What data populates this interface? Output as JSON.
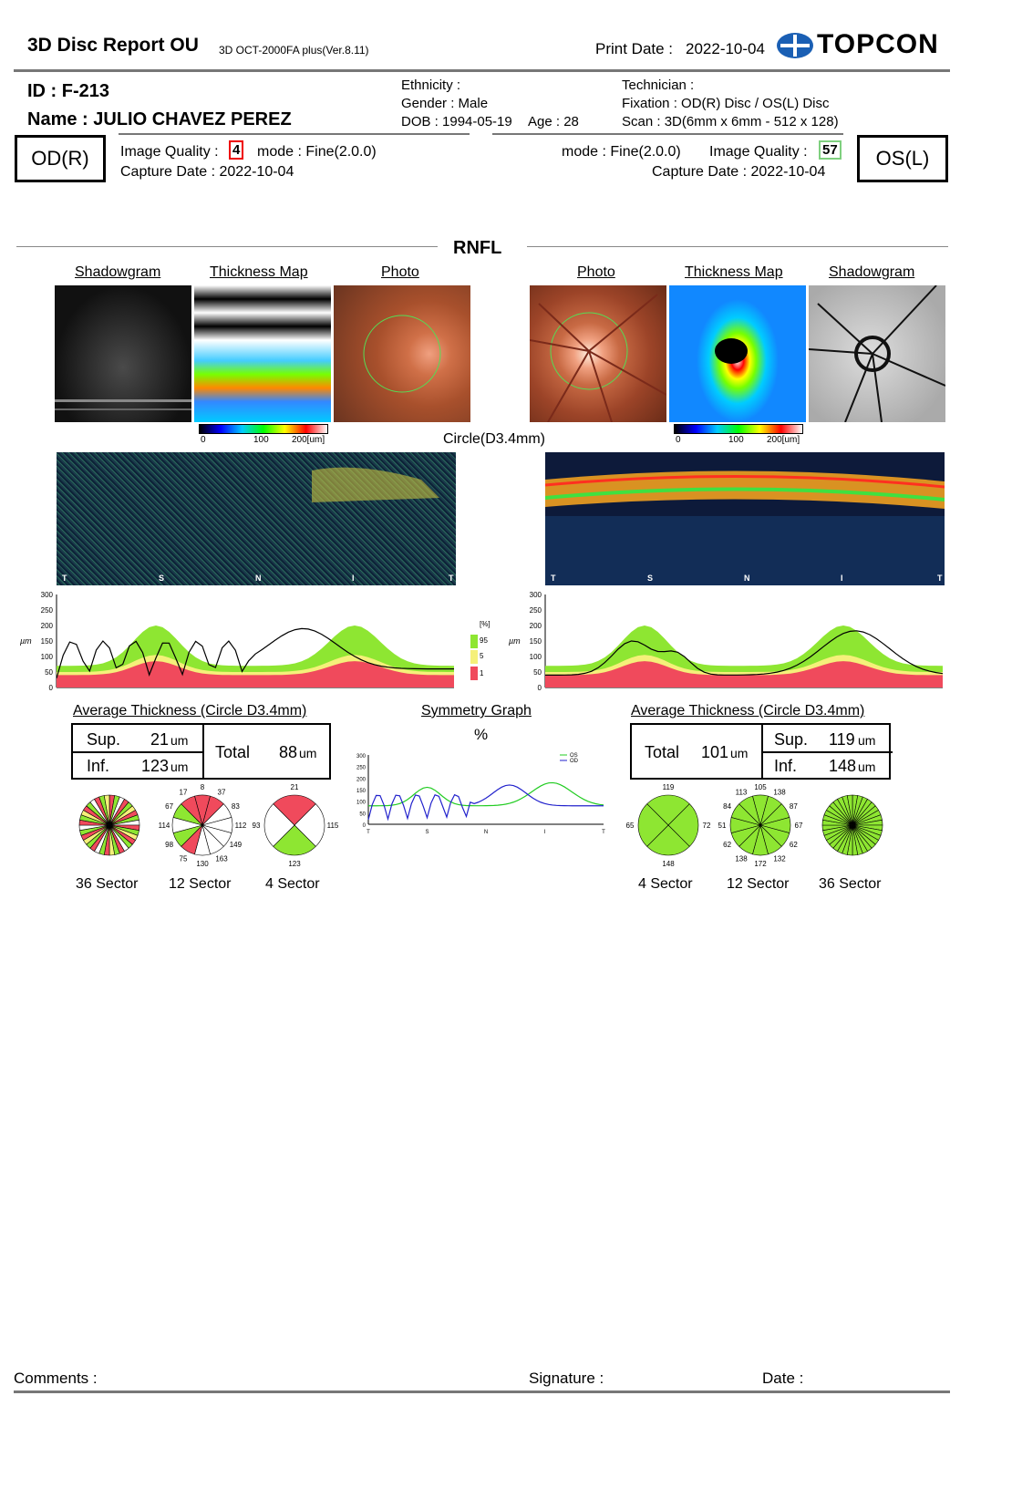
{
  "header": {
    "title": "3D Disc Report OU",
    "device": "3D OCT-2000FA plus(Ver.8.11)",
    "print_date_label": "Print Date :",
    "print_date": "2022-10-04",
    "brand": "TOPCON"
  },
  "patient": {
    "id": "ID : F-213",
    "name": "Name : JULIO CHAVEZ PEREZ",
    "ethnicity": "Ethnicity :",
    "gender": "Gender : Male",
    "dob": "DOB : 1994-05-19",
    "age": "Age : 28",
    "technician": "Technician :",
    "fixation": "Fixation : OD(R) Disc / OS(L) Disc",
    "scan": "Scan : 3D(6mm x 6mm - 512 x 128)"
  },
  "od": {
    "eye_label": "OD(R)",
    "iq_label": "Image Quality :",
    "iq_value": "4",
    "mode": "mode : Fine(2.0.0)",
    "capture": "Capture Date : 2022-10-04"
  },
  "os": {
    "eye_label": "OS(L)",
    "iq_label": "Image Quality :",
    "iq_value": "57",
    "mode": "mode : Fine(2.0.0)",
    "capture": "Capture Date : 2022-10-04"
  },
  "section": {
    "rnfl": "RNFL",
    "shadowgram": "Shadowgram",
    "thickness_map": "Thickness Map",
    "photo": "Photo",
    "circle": "Circle(D3.4mm)",
    "scale_0": "0",
    "scale_100": "100",
    "scale_200": "200[um]",
    "bscan_labels": [
      "T",
      "S",
      "N",
      "I",
      "T"
    ],
    "y_unit": "µm",
    "y_ticks": [
      "300",
      "250",
      "200",
      "150",
      "100",
      "50",
      "0"
    ],
    "legend_pct": "[%]",
    "legend_95": "95",
    "legend_5": "5",
    "legend_1": "1",
    "avg_title": "Average Thickness (Circle D3.4mm)",
    "sym_title": "Symmetry Graph",
    "sym_pct": "%",
    "sym_legend_os": "OS",
    "sym_legend_od": "OD",
    "sym_x": [
      "T",
      "S",
      "N",
      "I",
      "T"
    ],
    "sym_y": [
      "300",
      "250",
      "200",
      "150",
      "100",
      "50",
      "0"
    ]
  },
  "od_table": {
    "sup_label": "Sup.",
    "sup_val": "21",
    "sup_unit": "um",
    "inf_label": "Inf.",
    "inf_val": "123",
    "inf_unit": "um",
    "total_label": "Total",
    "total_val": "88",
    "total_unit": "um"
  },
  "os_table": {
    "sup_label": "Sup.",
    "sup_val": "119",
    "sup_unit": "um",
    "inf_label": "Inf.",
    "inf_val": "148",
    "inf_unit": "um",
    "total_label": "Total",
    "total_val": "101",
    "total_unit": "um"
  },
  "od_12": [
    "8",
    "37",
    "83",
    "112",
    "149",
    "163",
    "130",
    "75",
    "98",
    "114",
    "67",
    "17"
  ],
  "od_4": [
    "21",
    "115",
    "123",
    "93"
  ],
  "os_4": [
    "119",
    "72",
    "148",
    "65"
  ],
  "os_12": [
    "105",
    "138",
    "87",
    "67",
    "62",
    "132",
    "172",
    "138",
    "62",
    "51",
    "84",
    "113"
  ],
  "sector_labels": {
    "s36": "36 Sector",
    "s12": "12 Sector",
    "s4": "4 Sector"
  },
  "colors": {
    "green": "#8ee632",
    "yellow": "#f5f07a",
    "red": "#f04a5c",
    "white": "#ffffff"
  },
  "footer": {
    "comments": "Comments :",
    "signature": "Signature :",
    "date": "Date :"
  }
}
